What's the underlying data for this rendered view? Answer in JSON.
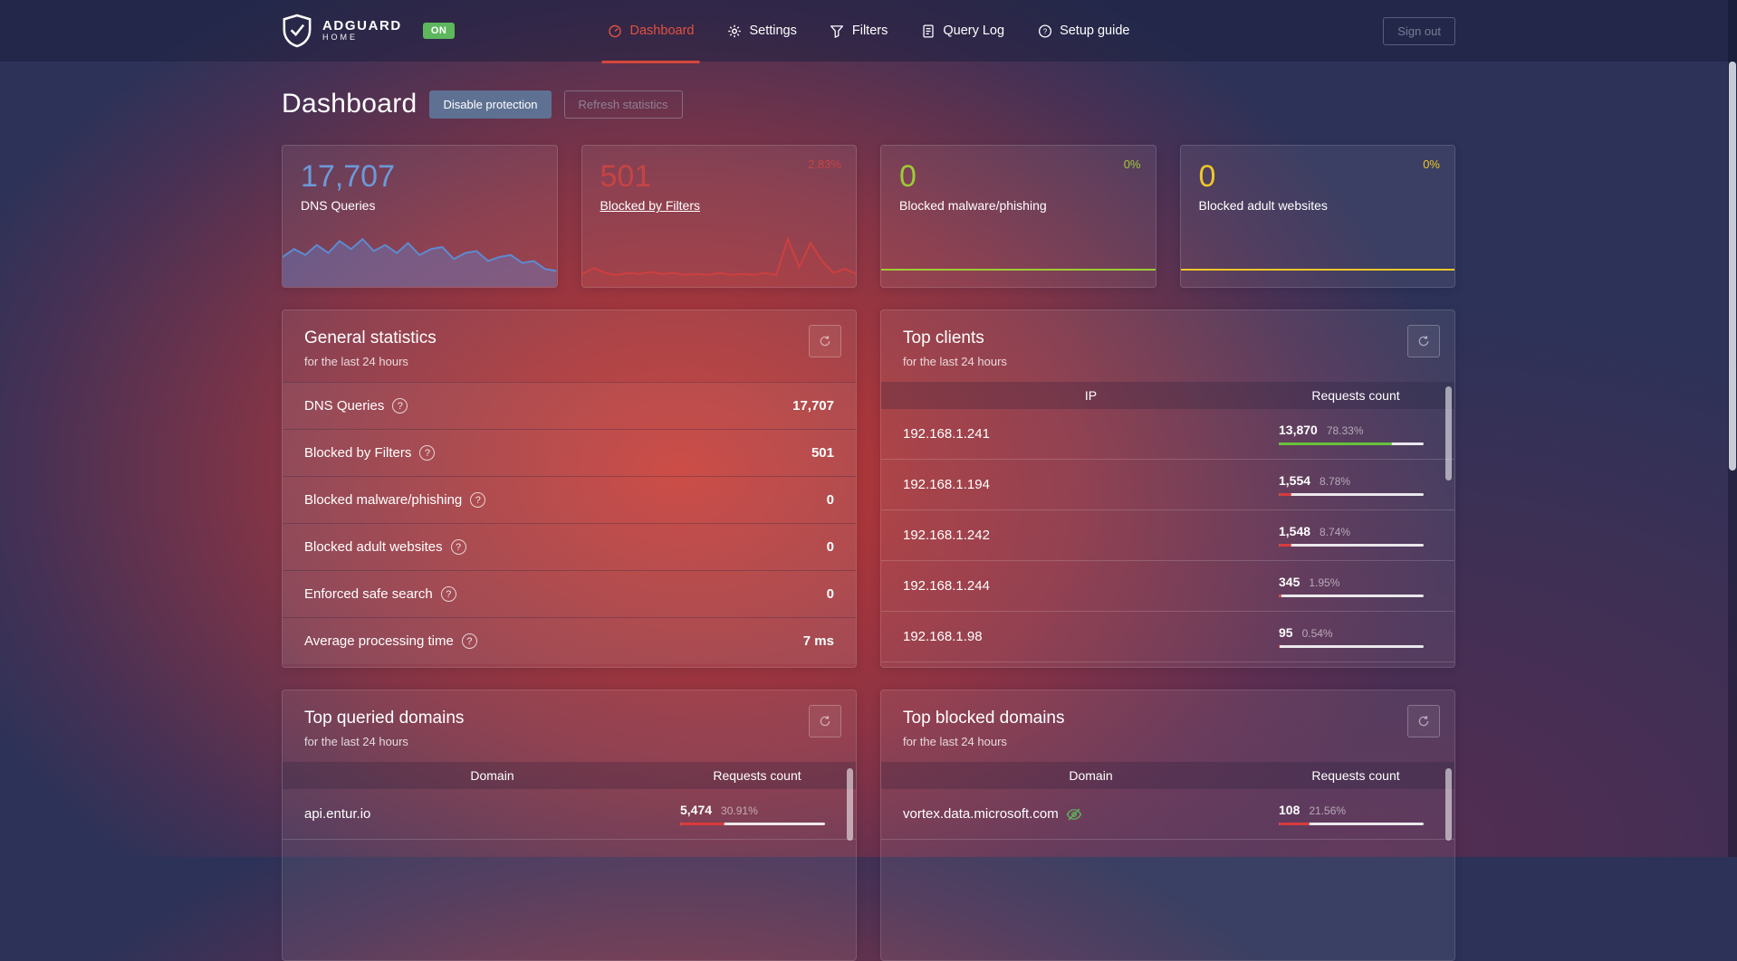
{
  "glyphs": {
    "help": "?"
  },
  "brand": {
    "name": "ADGUARD",
    "sub": "HOME",
    "badge": "ON"
  },
  "nav": {
    "items": [
      {
        "label": "Dashboard"
      },
      {
        "label": "Settings"
      },
      {
        "label": "Filters"
      },
      {
        "label": "Query Log"
      },
      {
        "label": "Setup guide"
      }
    ],
    "sign_out": "Sign out"
  },
  "page": {
    "title": "Dashboard",
    "disable_protection": "Disable protection",
    "refresh_statistics": "Refresh statistics"
  },
  "cards": [
    {
      "value": "17,707",
      "label": "DNS Queries",
      "percent": "",
      "color": "#6d99d9",
      "spark": [
        30,
        22,
        28,
        18,
        26,
        14,
        22,
        12,
        24,
        18,
        26,
        16,
        28,
        22,
        20,
        32,
        26,
        24,
        34,
        30,
        28,
        36,
        34,
        42,
        44
      ]
    },
    {
      "value": "501",
      "label": "Blocked by Filters",
      "percent": "2.83%",
      "color": "#c64444",
      "spark": [
        47,
        41,
        46,
        48,
        46,
        47,
        45,
        47,
        46,
        48,
        47,
        48,
        46,
        48,
        47,
        48,
        46,
        48,
        12,
        40,
        16,
        34,
        46,
        42,
        47
      ]
    },
    {
      "value": "0",
      "label": "Blocked malware/phishing",
      "percent": "0%",
      "color": "#9ccb35"
    },
    {
      "value": "0",
      "label": "Blocked adult websites",
      "percent": "0%",
      "color": "#edc728"
    }
  ],
  "general_statistics": {
    "title": "General statistics",
    "subtitle": "for the last 24 hours",
    "rows": [
      {
        "label": "DNS Queries",
        "value": "17,707"
      },
      {
        "label": "Blocked by Filters",
        "value": "501"
      },
      {
        "label": "Blocked malware/phishing",
        "value": "0"
      },
      {
        "label": "Blocked adult websites",
        "value": "0"
      },
      {
        "label": "Enforced safe search",
        "value": "0"
      },
      {
        "label": "Average processing time",
        "value": "7 ms"
      }
    ]
  },
  "top_clients": {
    "title": "Top clients",
    "subtitle": "for the last 24 hours",
    "columns": {
      "col1": "IP",
      "col2": "Requests count"
    },
    "rows": [
      {
        "ip": "192.168.1.241",
        "count": "13,870",
        "percent": "78.33%",
        "bar": 78.33,
        "bar_color": "#67c23a"
      },
      {
        "ip": "192.168.1.194",
        "count": "1,554",
        "percent": "8.78%",
        "bar": 8.78,
        "bar_color": "#d83b3b"
      },
      {
        "ip": "192.168.1.242",
        "count": "1,548",
        "percent": "8.74%",
        "bar": 8.74,
        "bar_color": "#d83b3b"
      },
      {
        "ip": "192.168.1.244",
        "count": "345",
        "percent": "1.95%",
        "bar": 1.95,
        "bar_color": "#d83b3b"
      },
      {
        "ip": "192.168.1.98",
        "count": "95",
        "percent": "0.54%",
        "bar": 0.54,
        "bar_color": "#d83b3b"
      }
    ]
  },
  "top_queried_domains": {
    "title": "Top queried domains",
    "subtitle": "for the last 24 hours",
    "columns": {
      "col1": "Domain",
      "col2": "Requests count"
    },
    "rows": [
      {
        "domain": "api.entur.io",
        "count": "5,474",
        "percent": "30.91%",
        "bar": 30.91,
        "bar_color": "#d83b3b"
      }
    ]
  },
  "top_blocked_domains": {
    "title": "Top blocked domains",
    "subtitle": "for the last 24 hours",
    "columns": {
      "col1": "Domain",
      "col2": "Requests count"
    },
    "rows": [
      {
        "domain": "vortex.data.microsoft.com",
        "count": "108",
        "percent": "21.56%",
        "bar": 21.56,
        "bar_color": "#d83b3b"
      }
    ]
  }
}
